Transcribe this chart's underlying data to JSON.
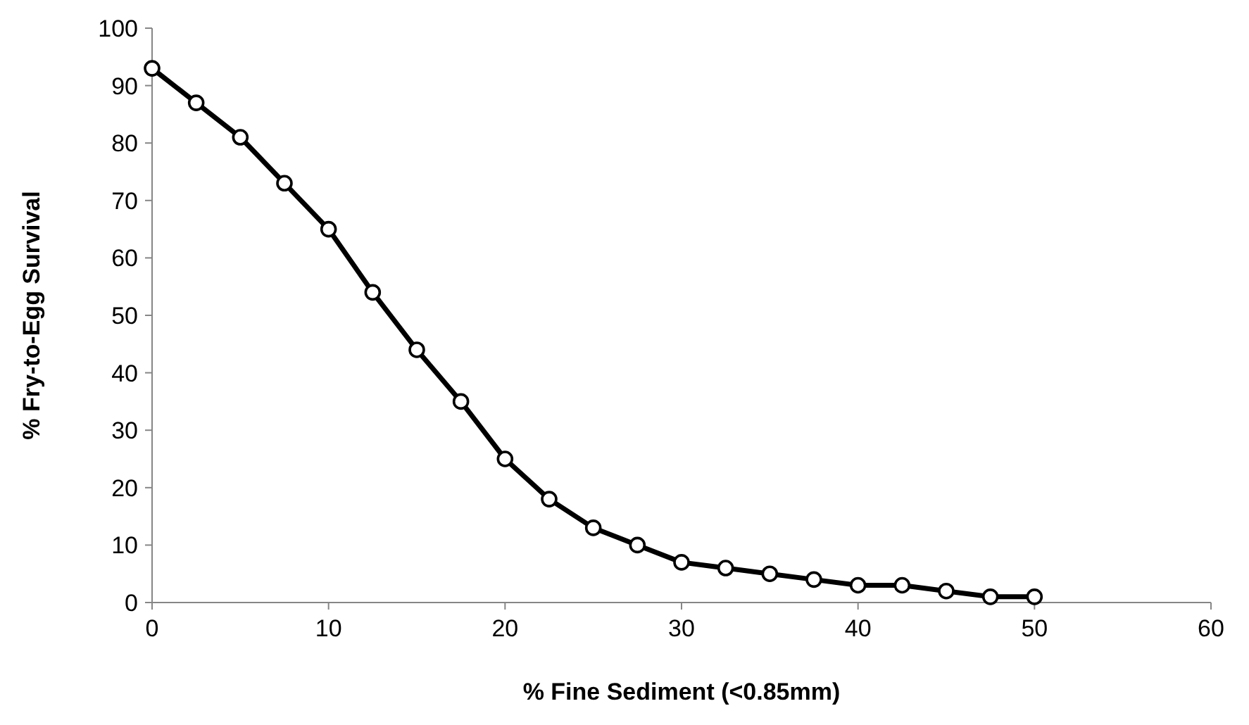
{
  "chart_data": {
    "type": "line",
    "xlabel": "% Fine Sediment (<0.85mm)",
    "ylabel": "% Fry-to-Egg Survival",
    "x": [
      0,
      2.5,
      5,
      7.5,
      10,
      12.5,
      15,
      17.5,
      20,
      22.5,
      25,
      27.5,
      30,
      32.5,
      35,
      37.5,
      40,
      42.5,
      45,
      47.5,
      50
    ],
    "series": [
      {
        "color": "#000000",
        "values": [
          93,
          87,
          81,
          73,
          65,
          54,
          44,
          35,
          25,
          18,
          13,
          10,
          7,
          6,
          5,
          4,
          3,
          3,
          2,
          1,
          1
        ]
      }
    ],
    "xlim": [
      0,
      60
    ],
    "xticks": [
      0,
      10,
      20,
      30,
      40,
      50,
      60
    ],
    "ylim": [
      0,
      100
    ],
    "yticks": [
      0,
      10,
      20,
      30,
      40,
      50,
      60,
      70,
      80,
      90,
      100
    ],
    "marker": "circle",
    "line_style": "solid",
    "grid": false
  }
}
